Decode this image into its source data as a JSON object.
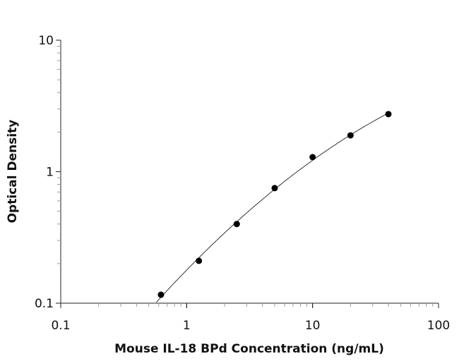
{
  "chart_data": {
    "type": "scatter",
    "title": "",
    "xlabel": "Mouse IL-18 BPd Concentration (ng/mL)",
    "ylabel": "Optical Density",
    "xscale": "log",
    "yscale": "log",
    "xlim": [
      0.1,
      100
    ],
    "ylim": [
      0.1,
      10
    ],
    "xticks": [
      "0.1",
      "1",
      "10",
      "100"
    ],
    "yticks": [
      "0.1",
      "1",
      "10"
    ],
    "grid": false,
    "legend": "none",
    "marker_color": "#000000",
    "line_color": "#333333",
    "points": {
      "x": [
        0.625,
        1.25,
        2.5,
        5,
        10,
        20,
        40
      ],
      "y": [
        0.116,
        0.21,
        0.4,
        0.75,
        1.29,
        1.89,
        2.74
      ]
    },
    "fit_curve": true
  }
}
